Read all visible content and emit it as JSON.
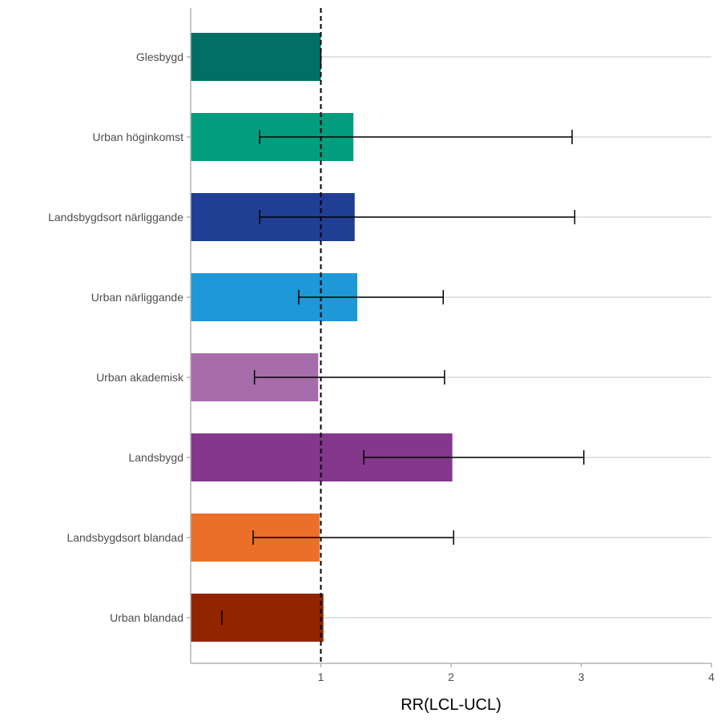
{
  "chart_data": {
    "type": "bar",
    "orientation": "horizontal",
    "xlabel": "RR(LCL-UCL)",
    "ylabel": "",
    "xlim": [
      0,
      4
    ],
    "xticks": [
      1,
      2,
      3,
      4
    ],
    "reference_line": 1,
    "grid": "horizontal-major",
    "categories": [
      "Glesbygd",
      "Urban höginkomst",
      "Landsbygdsort närliggande",
      "Urban närliggande",
      "Urban akademisk",
      "Landsbygd",
      "Landsbygdsort blandad",
      "Urban blandad"
    ],
    "values": [
      1.0,
      1.25,
      1.26,
      1.28,
      0.98,
      2.01,
      0.99,
      1.02
    ],
    "lcl": [
      1.0,
      0.53,
      0.53,
      0.83,
      0.49,
      1.33,
      0.48,
      0.24
    ],
    "ucl": [
      1.0,
      2.93,
      2.95,
      1.94,
      1.95,
      3.02,
      2.02,
      0.24
    ],
    "colors": [
      "#006F66",
      "#009E7E",
      "#1F3E94",
      "#1E98D6",
      "#A66DAA",
      "#83388B",
      "#EC6F29",
      "#922500"
    ]
  }
}
